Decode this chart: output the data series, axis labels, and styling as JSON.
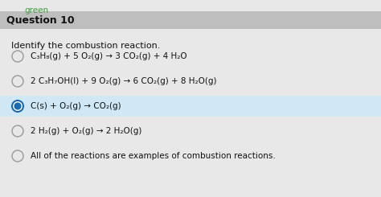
{
  "title": "Question 10",
  "subtitle": "Identify the combustion reaction.",
  "bg_color": "#e8e8e8",
  "header_bg": "#bebebe",
  "content_bg": "#e8e8e8",
  "selected_bg": "#d0e8f5",
  "options": [
    {
      "text": "C₃H₈(g) + 5 O₂(g) → 3 CO₂(g) + 4 H₂O",
      "selected": false
    },
    {
      "text": "2 C₃H₇OH(l) + 9 O₂(g) → 6 CO₂(g) + 8 H₂O(g)",
      "selected": false
    },
    {
      "text": "C(s) + O₂(g) → CO₂(g)",
      "selected": true
    },
    {
      "text": "2 H₂(g) + O₂(g) → 2 H₂O(g)",
      "selected": false
    },
    {
      "text": "All of the reactions are examples of combustion reactions.",
      "selected": false
    }
  ],
  "font_size_title": 9,
  "font_size_subtitle": 8,
  "font_size_option": 7.5,
  "text_color": "#111111",
  "radio_color_empty": "#999999",
  "radio_color_filled": "#1a6aad",
  "top_label": "green",
  "top_label_color": "#4a9a4a"
}
